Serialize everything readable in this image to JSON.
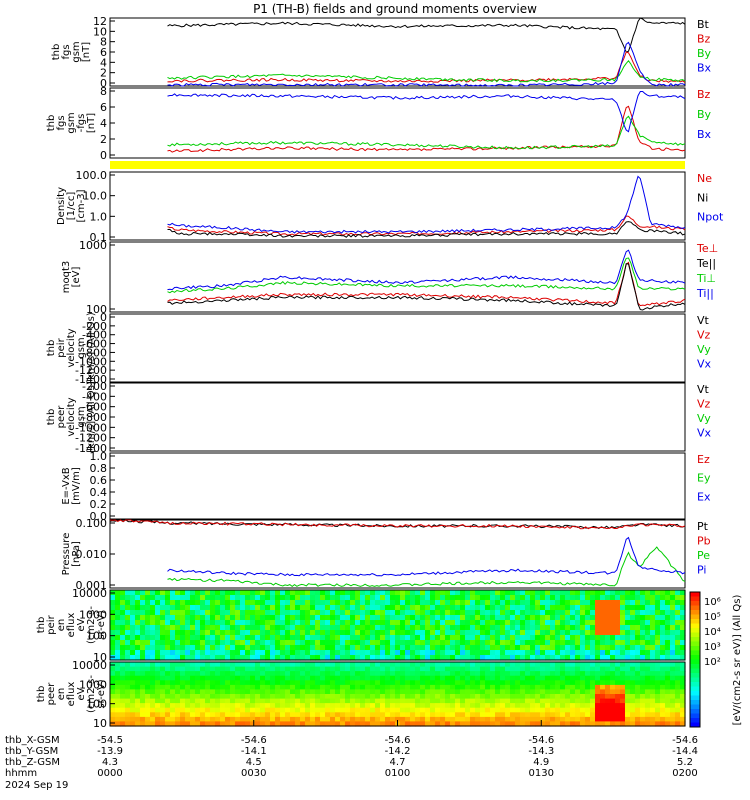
{
  "title": "P1 (TH-B) fields and ground moments overview",
  "colors": {
    "black": "#000000",
    "red": "#dd0000",
    "green": "#00cc00",
    "blue": "#0000ee",
    "yellow": "#ffff00"
  },
  "chart_data": [
    {
      "type": "line",
      "id": "bgsm",
      "ylabel": [
        "thb",
        "fgs",
        "gsm",
        "[nT]"
      ],
      "yticks": [
        "12",
        "10",
        "8",
        "6",
        "4",
        "2",
        "0"
      ],
      "ylim": [
        0,
        13
      ],
      "legend": [
        "Bt",
        "Bz",
        "By",
        "Bx"
      ],
      "series": [
        {
          "name": "Bt",
          "color": "black",
          "x": [
            0.1,
            0.3,
            0.5,
            0.7,
            0.88,
            0.9,
            0.92,
            0.94,
            1
          ],
          "values": [
            11.5,
            12,
            11.4,
            11.6,
            10.8,
            6,
            13,
            12,
            12
          ]
        },
        {
          "name": "Bz",
          "color": "red",
          "x": [
            0.1,
            0.3,
            0.5,
            0.7,
            0.88,
            0.9,
            0.92,
            0.94,
            1
          ],
          "values": [
            1,
            1.2,
            0.9,
            1.1,
            1.5,
            7,
            2,
            1,
            0.8
          ]
        },
        {
          "name": "By",
          "color": "green",
          "x": [
            0.1,
            0.3,
            0.5,
            0.7,
            0.88,
            0.9,
            0.92,
            0.94,
            1
          ],
          "values": [
            1.5,
            2,
            1.5,
            1,
            1.2,
            5,
            2,
            1.3,
            1
          ]
        },
        {
          "name": "Bx",
          "color": "blue",
          "x": [
            0.1,
            0.3,
            0.5,
            0.7,
            0.88,
            0.9,
            0.92,
            0.94,
            1
          ],
          "values": [
            0.2,
            0.3,
            0.2,
            0.1,
            0.5,
            9,
            3,
            0.3,
            0.2
          ]
        }
      ]
    },
    {
      "type": "line",
      "id": "bgse",
      "ylabel": [
        "thb",
        "fgs",
        "gsm",
        "-fgs",
        "[nT]"
      ],
      "yticks": [
        "8",
        "6",
        "4",
        "2",
        "0"
      ],
      "ylim": [
        -1.5,
        9
      ],
      "legend": [
        "Bz",
        "By",
        "Bx"
      ],
      "series": [
        {
          "name": "Bz",
          "color": "red",
          "x": [
            0.1,
            0.3,
            0.5,
            0.7,
            0.88,
            0.9,
            0.92,
            0.94,
            1
          ],
          "values": [
            -0.5,
            0,
            -0.3,
            0,
            0.3,
            7,
            1,
            0,
            -0.4
          ]
        },
        {
          "name": "By",
          "color": "green",
          "x": [
            0.1,
            0.3,
            0.5,
            0.7,
            0.88,
            0.9,
            0.92,
            0.94,
            1
          ],
          "values": [
            0.5,
            0.8,
            0.5,
            0,
            0.3,
            5,
            2,
            1,
            0.5
          ]
        },
        {
          "name": "Bx",
          "color": "blue",
          "x": [
            0.1,
            0.3,
            0.5,
            0.7,
            0.88,
            0.9,
            0.92,
            0.94,
            1
          ],
          "values": [
            8,
            7.8,
            7.5,
            7.8,
            7.2,
            2,
            8.5,
            7.8,
            7.6
          ]
        }
      ]
    },
    {
      "type": "line",
      "id": "density",
      "ylabel": [
        "Density",
        "[1/cc]",
        "[cm-3]"
      ],
      "yticks": [
        "100.0",
        "10.0",
        "1.0",
        "0.1"
      ],
      "ylim": [
        -1.3,
        2
      ],
      "log": true,
      "legend": [
        "Ne",
        "Ni",
        "Npot"
      ],
      "series": [
        {
          "name": "Ne",
          "color": "red",
          "x": [
            0.1,
            0.12,
            0.2,
            0.3,
            0.5,
            0.7,
            0.88,
            0.9,
            0.92,
            1
          ],
          "values": [
            -0.7,
            -0.8,
            -0.9,
            -1,
            -1,
            -0.9,
            -0.8,
            -0.1,
            -0.6,
            -0.8
          ]
        },
        {
          "name": "Ni",
          "color": "black",
          "x": [
            0.1,
            0.12,
            0.2,
            0.3,
            0.5,
            0.7,
            0.88,
            0.9,
            0.92,
            1
          ],
          "values": [
            -0.8,
            -1,
            -1,
            -1.1,
            -1.1,
            -1,
            -1,
            -0.3,
            -0.8,
            -1
          ]
        },
        {
          "name": "Npot",
          "color": "blue",
          "x": [
            0.1,
            0.12,
            0.2,
            0.3,
            0.5,
            0.7,
            0.88,
            0.9,
            0.92,
            0.94,
            1
          ],
          "values": [
            -0.5,
            -0.6,
            -0.7,
            -0.9,
            -0.9,
            -0.8,
            -0.7,
            0,
            2,
            -0.5,
            -0.7
          ]
        }
      ]
    },
    {
      "type": "line",
      "id": "temp",
      "ylabel": [
        "moqt3",
        "[eV]"
      ],
      "yticks": [
        "1000",
        "100"
      ],
      "ylim": [
        1.2,
        3.6
      ],
      "log": true,
      "legend": [
        "Te⊥",
        "Te||",
        "Ti⊥",
        "Ti||"
      ],
      "series": [
        {
          "name": "Te⊥",
          "color": "red",
          "x": [
            0.1,
            0.2,
            0.3,
            0.5,
            0.7,
            0.88,
            0.9,
            0.92,
            1
          ],
          "values": [
            1.6,
            1.7,
            1.8,
            1.8,
            1.7,
            1.5,
            3,
            1.4,
            1.6
          ]
        },
        {
          "name": "Te||",
          "color": "black",
          "x": [
            0.1,
            0.2,
            0.3,
            0.5,
            0.7,
            0.88,
            0.9,
            0.92,
            1
          ],
          "values": [
            1.5,
            1.6,
            1.7,
            1.7,
            1.6,
            1.4,
            3,
            1.3,
            1.5
          ]
        },
        {
          "name": "Ti⊥",
          "color": "green",
          "x": [
            0.1,
            0.2,
            0.3,
            0.5,
            0.7,
            0.88,
            0.9,
            0.92,
            1
          ],
          "values": [
            1.9,
            2,
            2.2,
            2.1,
            2.1,
            2,
            3.2,
            2,
            2
          ]
        },
        {
          "name": "Ti||",
          "color": "blue",
          "x": [
            0.1,
            0.2,
            0.3,
            0.5,
            0.7,
            0.88,
            0.9,
            0.92,
            1
          ],
          "values": [
            2,
            2.1,
            2.4,
            2.2,
            2.4,
            2.2,
            3.4,
            2.3,
            2.2
          ]
        }
      ]
    },
    {
      "type": "line",
      "id": "vi",
      "ylabel": [
        "thb",
        "peir",
        "velocity",
        "gsm",
        "[km/s] (All Qs)"
      ],
      "yticks": [
        "0",
        "-200",
        "-400",
        "-600",
        "-800",
        "-1000",
        "-1200",
        "-1400"
      ],
      "ylim": [
        -1400,
        0
      ],
      "legend": [
        "Vt",
        "Vz",
        "Vy",
        "Vx"
      ],
      "series": []
    },
    {
      "type": "line",
      "id": "ve",
      "ylabel": [
        "thb",
        "peer",
        "velocity",
        "gsm",
        "[km/s] (All Qs)"
      ],
      "yticks": [
        "-200",
        "-400",
        "-600",
        "-800",
        "-1000",
        "-1200",
        "-1400"
      ],
      "ylim": [
        -1400,
        0
      ],
      "legend": [
        "Vt",
        "Vz",
        "Vy",
        "Vx"
      ],
      "series": []
    },
    {
      "type": "line",
      "id": "efield",
      "ylabel": [
        "E=-VxB",
        "[mV/m]"
      ],
      "yticks": [
        "1.0",
        "0.8",
        "0.6",
        "0.4",
        "0.2",
        "0.0"
      ],
      "ylim": [
        0,
        1
      ],
      "legend": [
        "Ez",
        "Ey",
        "Ex"
      ],
      "series": []
    },
    {
      "type": "line",
      "id": "pressure",
      "ylabel": [
        "Pressure",
        "[nPa]"
      ],
      "yticks": [
        "0.100",
        "0.010",
        "0.001"
      ],
      "ylim": [
        -3.3,
        -1
      ],
      "log": true,
      "legend": [
        "Pt",
        "Pb",
        "Pe",
        "Pi"
      ],
      "series": [
        {
          "name": "Pt",
          "color": "black",
          "x": [
            0,
            0.1,
            0.3,
            0.5,
            0.7,
            0.88,
            0.9,
            0.92,
            1
          ],
          "values": [
            -1,
            -1.1,
            -1.15,
            -1.2,
            -1.2,
            -1.25,
            -1.2,
            -1.15,
            -1.2
          ]
        },
        {
          "name": "Pb",
          "color": "red",
          "x": [
            0,
            0.1,
            0.3,
            0.5,
            0.7,
            0.88,
            0.9,
            0.92,
            1
          ],
          "values": [
            -1,
            -1.1,
            -1.15,
            -1.2,
            -1.2,
            -1.3,
            -1.2,
            -1.15,
            -1.2
          ]
        },
        {
          "name": "Pe",
          "color": "green",
          "x": [
            0.1,
            0.2,
            0.3,
            0.5,
            0.7,
            0.88,
            0.9,
            0.92,
            0.95,
            1
          ],
          "values": [
            -3,
            -3.05,
            -3.2,
            -3.2,
            -3.1,
            -3.2,
            -2.1,
            -2.6,
            -1.9,
            -3.1
          ]
        },
        {
          "name": "Pi",
          "color": "blue",
          "x": [
            0.1,
            0.2,
            0.3,
            0.5,
            0.7,
            0.88,
            0.9,
            0.92,
            1
          ],
          "values": [
            -2.7,
            -2.8,
            -2.85,
            -2.85,
            -2.7,
            -2.8,
            -1.5,
            -2.6,
            -2.8
          ]
        }
      ]
    },
    {
      "type": "heatmap",
      "id": "ieflux",
      "ylabel": [
        "thb",
        "peir",
        "en",
        "eflux",
        "eV",
        "(cm2-s-",
        "sr-eV)"
      ],
      "yticks": [
        "10000",
        "1000",
        "100",
        "10"
      ],
      "ylim": [
        1,
        4.2
      ],
      "log": true
    },
    {
      "type": "heatmap",
      "id": "eeflux",
      "ylabel": [
        "thb",
        "peer",
        "en",
        "eflux",
        "eV",
        "(cm2-s-",
        "sr-eV)"
      ],
      "yticks": [
        "10000",
        "1000",
        "100",
        "10"
      ],
      "ylim": [
        1,
        4.2
      ],
      "log": true
    }
  ],
  "colorbar": {
    "label": "[eV/(cm2-s sr eV)] (All Qs)",
    "ticks": [
      "10⁶",
      "10⁵",
      "10⁴",
      "10³",
      "10²"
    ]
  },
  "xaxis": {
    "rows": [
      {
        "label": "thb_X-GSM",
        "values": [
          "-54.5",
          "-54.6",
          "-54.6",
          "-54.6",
          "-54.6"
        ]
      },
      {
        "label": "thb_Y-GSM",
        "values": [
          "-13.9",
          "-14.1",
          "-14.2",
          "-14.3",
          "-14.4"
        ]
      },
      {
        "label": "thb_Z-GSM",
        "values": [
          "4.3",
          "4.5",
          "4.7",
          "4.9",
          "5.2"
        ]
      },
      {
        "label": "hhmm",
        "values": [
          "0000",
          "0030",
          "0100",
          "0130",
          "0200"
        ]
      }
    ],
    "date": "2024 Sep 19"
  }
}
